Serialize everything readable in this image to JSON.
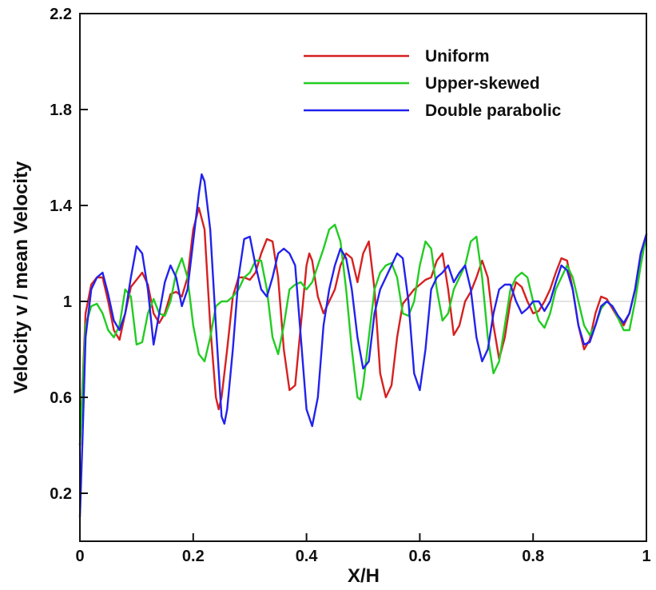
{
  "chart_data": {
    "type": "line",
    "title": "",
    "xlabel": "X/H",
    "ylabel": "Velocity v / mean Velocity",
    "xlim": [
      0,
      1
    ],
    "ylim": [
      0,
      2.2
    ],
    "x_ticks": [
      0,
      0.2,
      0.4,
      0.6,
      0.8,
      1
    ],
    "x_tick_labels": [
      "0",
      "0.2",
      "0.4",
      "0.6",
      "0.8",
      "1"
    ],
    "y_ticks": [
      0.2,
      0.6,
      1,
      1.4,
      1.8,
      2.2
    ],
    "y_tick_labels": [
      "0.2",
      "0.6",
      "1",
      "1.4",
      "1.8",
      "2.2"
    ],
    "reference_line": {
      "y": 1,
      "color": "#e4e4e4"
    },
    "grid": false,
    "legend_position": "top-right",
    "series": [
      {
        "name": "Uniform",
        "color": "#d62020",
        "points": [
          [
            0,
            0.4
          ],
          [
            0.01,
            0.95
          ],
          [
            0.02,
            1.07
          ],
          [
            0.03,
            1.1
          ],
          [
            0.04,
            1.1
          ],
          [
            0.05,
            1.0
          ],
          [
            0.06,
            0.88
          ],
          [
            0.07,
            0.84
          ],
          [
            0.08,
            0.95
          ],
          [
            0.09,
            1.06
          ],
          [
            0.1,
            1.09
          ],
          [
            0.11,
            1.12
          ],
          [
            0.12,
            1.07
          ],
          [
            0.13,
            0.95
          ],
          [
            0.14,
            0.91
          ],
          [
            0.15,
            0.95
          ],
          [
            0.16,
            1.03
          ],
          [
            0.17,
            1.04
          ],
          [
            0.18,
            1.02
          ],
          [
            0.19,
            1.1
          ],
          [
            0.2,
            1.3
          ],
          [
            0.21,
            1.39
          ],
          [
            0.22,
            1.3
          ],
          [
            0.23,
            0.9
          ],
          [
            0.24,
            0.6
          ],
          [
            0.245,
            0.55
          ],
          [
            0.25,
            0.6
          ],
          [
            0.26,
            0.8
          ],
          [
            0.27,
            1.02
          ],
          [
            0.28,
            1.1
          ],
          [
            0.29,
            1.1
          ],
          [
            0.3,
            1.09
          ],
          [
            0.31,
            1.12
          ],
          [
            0.32,
            1.2
          ],
          [
            0.33,
            1.26
          ],
          [
            0.34,
            1.25
          ],
          [
            0.35,
            1.1
          ],
          [
            0.36,
            0.8
          ],
          [
            0.37,
            0.63
          ],
          [
            0.38,
            0.65
          ],
          [
            0.39,
            0.9
          ],
          [
            0.4,
            1.15
          ],
          [
            0.405,
            1.2
          ],
          [
            0.41,
            1.17
          ],
          [
            0.42,
            1.02
          ],
          [
            0.43,
            0.95
          ],
          [
            0.44,
            1.0
          ],
          [
            0.45,
            1.05
          ],
          [
            0.46,
            1.15
          ],
          [
            0.47,
            1.2
          ],
          [
            0.48,
            1.18
          ],
          [
            0.49,
            1.08
          ],
          [
            0.5,
            1.2
          ],
          [
            0.51,
            1.25
          ],
          [
            0.52,
            1.05
          ],
          [
            0.53,
            0.7
          ],
          [
            0.54,
            0.6
          ],
          [
            0.55,
            0.65
          ],
          [
            0.56,
            0.85
          ],
          [
            0.57,
            0.99
          ],
          [
            0.58,
            1.02
          ],
          [
            0.59,
            1.05
          ],
          [
            0.6,
            1.07
          ],
          [
            0.61,
            1.09
          ],
          [
            0.62,
            1.1
          ],
          [
            0.63,
            1.17
          ],
          [
            0.64,
            1.2
          ],
          [
            0.65,
            1.05
          ],
          [
            0.66,
            0.86
          ],
          [
            0.67,
            0.9
          ],
          [
            0.68,
            1.0
          ],
          [
            0.69,
            1.04
          ],
          [
            0.7,
            1.1
          ],
          [
            0.71,
            1.17
          ],
          [
            0.72,
            1.1
          ],
          [
            0.73,
            0.9
          ],
          [
            0.74,
            0.76
          ],
          [
            0.75,
            0.85
          ],
          [
            0.76,
            1.0
          ],
          [
            0.77,
            1.08
          ],
          [
            0.78,
            1.06
          ],
          [
            0.79,
            1.0
          ],
          [
            0.8,
            0.95
          ],
          [
            0.81,
            0.96
          ],
          [
            0.82,
            1.0
          ],
          [
            0.83,
            1.05
          ],
          [
            0.84,
            1.12
          ],
          [
            0.85,
            1.18
          ],
          [
            0.86,
            1.17
          ],
          [
            0.87,
            1.05
          ],
          [
            0.88,
            0.9
          ],
          [
            0.89,
            0.8
          ],
          [
            0.9,
            0.84
          ],
          [
            0.91,
            0.95
          ],
          [
            0.92,
            1.02
          ],
          [
            0.93,
            1.01
          ],
          [
            0.94,
            0.97
          ],
          [
            0.95,
            0.93
          ],
          [
            0.96,
            0.9
          ],
          [
            0.97,
            0.95
          ],
          [
            0.98,
            1.05
          ],
          [
            0.99,
            1.2
          ],
          [
            1.0,
            1.28
          ]
        ]
      },
      {
        "name": "Upper-skewed",
        "color": "#22cc22",
        "points": [
          [
            0,
            0.4
          ],
          [
            0.01,
            0.9
          ],
          [
            0.02,
            0.98
          ],
          [
            0.03,
            0.99
          ],
          [
            0.04,
            0.95
          ],
          [
            0.05,
            0.88
          ],
          [
            0.06,
            0.85
          ],
          [
            0.07,
            0.9
          ],
          [
            0.08,
            1.05
          ],
          [
            0.09,
            1.02
          ],
          [
            0.1,
            0.82
          ],
          [
            0.11,
            0.83
          ],
          [
            0.12,
            0.95
          ],
          [
            0.13,
            1.01
          ],
          [
            0.14,
            0.95
          ],
          [
            0.15,
            0.94
          ],
          [
            0.16,
            1.0
          ],
          [
            0.17,
            1.12
          ],
          [
            0.18,
            1.18
          ],
          [
            0.19,
            1.1
          ],
          [
            0.2,
            0.9
          ],
          [
            0.21,
            0.78
          ],
          [
            0.22,
            0.75
          ],
          [
            0.23,
            0.85
          ],
          [
            0.24,
            0.98
          ],
          [
            0.25,
            1.0
          ],
          [
            0.26,
            1.0
          ],
          [
            0.27,
            1.02
          ],
          [
            0.28,
            1.05
          ],
          [
            0.29,
            1.1
          ],
          [
            0.3,
            1.12
          ],
          [
            0.31,
            1.17
          ],
          [
            0.32,
            1.17
          ],
          [
            0.33,
            1.05
          ],
          [
            0.34,
            0.85
          ],
          [
            0.35,
            0.78
          ],
          [
            0.36,
            0.9
          ],
          [
            0.37,
            1.05
          ],
          [
            0.38,
            1.07
          ],
          [
            0.39,
            1.08
          ],
          [
            0.4,
            1.05
          ],
          [
            0.41,
            1.08
          ],
          [
            0.42,
            1.15
          ],
          [
            0.43,
            1.22
          ],
          [
            0.44,
            1.3
          ],
          [
            0.45,
            1.32
          ],
          [
            0.46,
            1.25
          ],
          [
            0.47,
            1.05
          ],
          [
            0.48,
            0.8
          ],
          [
            0.49,
            0.6
          ],
          [
            0.495,
            0.59
          ],
          [
            0.5,
            0.65
          ],
          [
            0.51,
            0.85
          ],
          [
            0.52,
            1.05
          ],
          [
            0.53,
            1.12
          ],
          [
            0.54,
            1.15
          ],
          [
            0.55,
            1.16
          ],
          [
            0.56,
            1.1
          ],
          [
            0.57,
            0.95
          ],
          [
            0.58,
            0.94
          ],
          [
            0.59,
            1.0
          ],
          [
            0.6,
            1.15
          ],
          [
            0.61,
            1.25
          ],
          [
            0.62,
            1.22
          ],
          [
            0.63,
            1.05
          ],
          [
            0.64,
            0.92
          ],
          [
            0.65,
            0.95
          ],
          [
            0.66,
            1.05
          ],
          [
            0.67,
            1.1
          ],
          [
            0.68,
            1.15
          ],
          [
            0.69,
            1.25
          ],
          [
            0.7,
            1.27
          ],
          [
            0.71,
            1.1
          ],
          [
            0.72,
            0.85
          ],
          [
            0.73,
            0.7
          ],
          [
            0.74,
            0.75
          ],
          [
            0.75,
            0.9
          ],
          [
            0.76,
            1.05
          ],
          [
            0.77,
            1.1
          ],
          [
            0.78,
            1.12
          ],
          [
            0.79,
            1.1
          ],
          [
            0.8,
            1.0
          ],
          [
            0.81,
            0.92
          ],
          [
            0.82,
            0.89
          ],
          [
            0.83,
            0.95
          ],
          [
            0.84,
            1.05
          ],
          [
            0.85,
            1.1
          ],
          [
            0.86,
            1.15
          ],
          [
            0.87,
            1.1
          ],
          [
            0.88,
            1.0
          ],
          [
            0.89,
            0.9
          ],
          [
            0.9,
            0.86
          ],
          [
            0.91,
            0.9
          ],
          [
            0.92,
            0.97
          ],
          [
            0.93,
            1.0
          ],
          [
            0.94,
            0.98
          ],
          [
            0.95,
            0.93
          ],
          [
            0.96,
            0.88
          ],
          [
            0.97,
            0.88
          ],
          [
            0.98,
            1.0
          ],
          [
            0.99,
            1.15
          ],
          [
            1.0,
            1.28
          ]
        ]
      },
      {
        "name": "Double parabolic",
        "color": "#2222ee",
        "points": [
          [
            0,
            0.1
          ],
          [
            0.005,
            0.45
          ],
          [
            0.01,
            0.85
          ],
          [
            0.02,
            1.05
          ],
          [
            0.03,
            1.1
          ],
          [
            0.04,
            1.12
          ],
          [
            0.05,
            1.03
          ],
          [
            0.06,
            0.92
          ],
          [
            0.07,
            0.88
          ],
          [
            0.08,
            0.95
          ],
          [
            0.09,
            1.1
          ],
          [
            0.1,
            1.23
          ],
          [
            0.11,
            1.2
          ],
          [
            0.12,
            1.05
          ],
          [
            0.13,
            0.82
          ],
          [
            0.14,
            0.95
          ],
          [
            0.15,
            1.08
          ],
          [
            0.16,
            1.15
          ],
          [
            0.17,
            1.1
          ],
          [
            0.18,
            0.98
          ],
          [
            0.19,
            1.05
          ],
          [
            0.2,
            1.25
          ],
          [
            0.21,
            1.45
          ],
          [
            0.215,
            1.53
          ],
          [
            0.22,
            1.5
          ],
          [
            0.23,
            1.3
          ],
          [
            0.24,
            0.9
          ],
          [
            0.25,
            0.52
          ],
          [
            0.255,
            0.49
          ],
          [
            0.26,
            0.55
          ],
          [
            0.27,
            0.8
          ],
          [
            0.28,
            1.1
          ],
          [
            0.29,
            1.26
          ],
          [
            0.3,
            1.27
          ],
          [
            0.31,
            1.15
          ],
          [
            0.32,
            1.05
          ],
          [
            0.33,
            1.02
          ],
          [
            0.34,
            1.1
          ],
          [
            0.35,
            1.2
          ],
          [
            0.36,
            1.22
          ],
          [
            0.37,
            1.2
          ],
          [
            0.38,
            1.15
          ],
          [
            0.39,
            0.85
          ],
          [
            0.4,
            0.55
          ],
          [
            0.41,
            0.48
          ],
          [
            0.42,
            0.6
          ],
          [
            0.43,
            0.9
          ],
          [
            0.44,
            1.05
          ],
          [
            0.45,
            1.15
          ],
          [
            0.46,
            1.22
          ],
          [
            0.47,
            1.18
          ],
          [
            0.48,
            1.05
          ],
          [
            0.49,
            0.85
          ],
          [
            0.5,
            0.72
          ],
          [
            0.51,
            0.75
          ],
          [
            0.52,
            0.95
          ],
          [
            0.53,
            1.05
          ],
          [
            0.54,
            1.1
          ],
          [
            0.55,
            1.15
          ],
          [
            0.56,
            1.2
          ],
          [
            0.57,
            1.18
          ],
          [
            0.58,
            1.0
          ],
          [
            0.59,
            0.7
          ],
          [
            0.6,
            0.63
          ],
          [
            0.61,
            0.8
          ],
          [
            0.62,
            1.05
          ],
          [
            0.63,
            1.1
          ],
          [
            0.64,
            1.12
          ],
          [
            0.65,
            1.15
          ],
          [
            0.66,
            1.08
          ],
          [
            0.67,
            1.12
          ],
          [
            0.68,
            1.15
          ],
          [
            0.69,
            1.05
          ],
          [
            0.7,
            0.85
          ],
          [
            0.71,
            0.75
          ],
          [
            0.72,
            0.8
          ],
          [
            0.73,
            0.95
          ],
          [
            0.74,
            1.05
          ],
          [
            0.75,
            1.07
          ],
          [
            0.76,
            1.07
          ],
          [
            0.77,
            1.0
          ],
          [
            0.78,
            0.95
          ],
          [
            0.79,
            0.97
          ],
          [
            0.8,
            1.0
          ],
          [
            0.81,
            1.0
          ],
          [
            0.82,
            0.96
          ],
          [
            0.83,
            1.0
          ],
          [
            0.84,
            1.08
          ],
          [
            0.85,
            1.15
          ],
          [
            0.86,
            1.13
          ],
          [
            0.87,
            1.05
          ],
          [
            0.88,
            0.9
          ],
          [
            0.89,
            0.82
          ],
          [
            0.9,
            0.83
          ],
          [
            0.91,
            0.9
          ],
          [
            0.92,
            0.98
          ],
          [
            0.93,
            1.0
          ],
          [
            0.94,
            0.98
          ],
          [
            0.95,
            0.94
          ],
          [
            0.96,
            0.91
          ],
          [
            0.97,
            0.95
          ],
          [
            0.98,
            1.05
          ],
          [
            0.99,
            1.2
          ],
          [
            1.0,
            1.28
          ]
        ]
      }
    ]
  }
}
